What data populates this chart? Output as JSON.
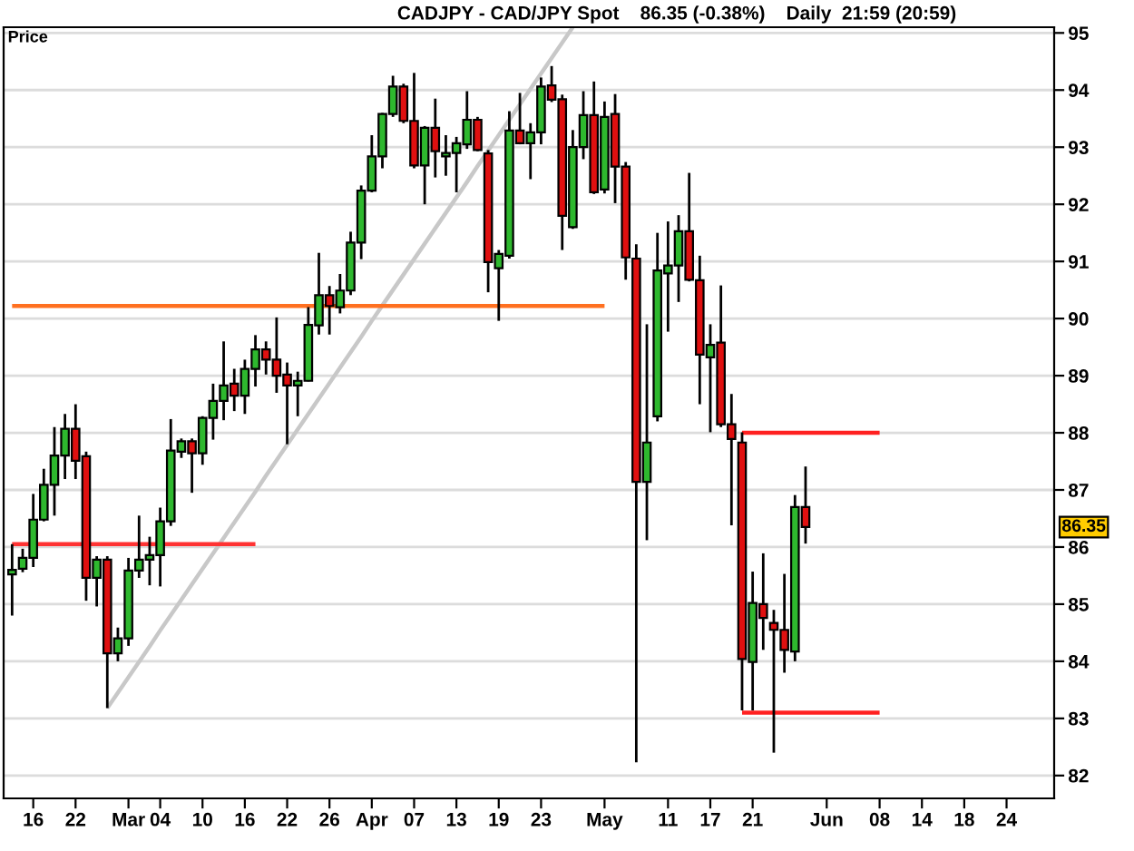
{
  "chart_data": {
    "type": "candlestick",
    "title": "CADJPY - CAD/JPY Spot    86.35 (-0.38%)    Daily  21:59 (20:59)",
    "ylabel": "Price",
    "categories": [
      null,
      null,
      "16",
      null,
      null,
      null,
      "22",
      null,
      null,
      null,
      null,
      "Mar",
      null,
      null,
      "04",
      null,
      null,
      null,
      "10",
      null,
      null,
      null,
      "16",
      null,
      null,
      null,
      "22",
      null,
      null,
      null,
      "26",
      null,
      null,
      null,
      "Apr",
      null,
      null,
      null,
      "07",
      null,
      null,
      null,
      "13",
      null,
      null,
      null,
      "19",
      null,
      null,
      null,
      "23",
      null,
      null,
      null,
      null,
      null,
      "May",
      null,
      null,
      null,
      null,
      null,
      "11",
      null,
      null,
      null,
      "17",
      null,
      null,
      null,
      "21",
      null,
      null,
      null,
      null,
      null,
      null,
      "Jun",
      null,
      null,
      null,
      null,
      "08",
      null,
      null,
      null,
      "14",
      null,
      null,
      null,
      "18",
      null,
      null,
      null,
      "24",
      null,
      null,
      null,
      null
    ],
    "ohlc": [
      [
        85.52,
        86.05,
        84.8,
        85.6
      ],
      [
        85.62,
        85.97,
        85.56,
        85.81
      ],
      [
        85.81,
        86.93,
        85.65,
        86.48
      ],
      [
        86.48,
        87.37,
        86.45,
        87.09
      ],
      [
        87.09,
        88.1,
        86.55,
        87.6
      ],
      [
        87.6,
        88.33,
        87.19,
        88.07
      ],
      [
        88.07,
        88.5,
        87.19,
        87.51
      ],
      [
        87.59,
        87.67,
        85.06,
        85.46
      ],
      [
        85.46,
        85.84,
        84.96,
        85.78
      ],
      [
        85.78,
        85.84,
        83.18,
        84.14
      ],
      [
        84.14,
        84.59,
        84.0,
        84.4
      ],
      [
        84.4,
        85.81,
        84.27,
        85.59
      ],
      [
        85.59,
        86.55,
        85.46,
        85.78
      ],
      [
        85.78,
        86.18,
        85.33,
        85.86
      ],
      [
        85.86,
        86.69,
        85.31,
        86.45
      ],
      [
        86.45,
        88.24,
        86.37,
        87.69
      ],
      [
        87.67,
        87.9,
        87.56,
        87.85
      ],
      [
        87.85,
        87.9,
        86.95,
        87.64
      ],
      [
        87.64,
        88.29,
        87.44,
        88.26
      ],
      [
        88.26,
        88.86,
        87.88,
        88.56
      ],
      [
        88.56,
        89.6,
        88.22,
        88.83
      ],
      [
        88.86,
        89.12,
        88.38,
        88.65
      ],
      [
        88.65,
        89.28,
        88.33,
        89.12
      ],
      [
        89.12,
        89.71,
        88.81,
        89.46
      ],
      [
        89.46,
        89.6,
        89.02,
        89.28
      ],
      [
        89.28,
        90.02,
        88.7,
        89.0
      ],
      [
        89.02,
        89.23,
        87.8,
        88.83
      ],
      [
        88.83,
        89.07,
        88.29,
        88.91
      ],
      [
        88.91,
        90.2,
        88.9,
        89.89
      ],
      [
        89.88,
        91.15,
        89.72,
        90.41
      ],
      [
        90.41,
        90.57,
        89.72,
        90.22
      ],
      [
        90.2,
        90.78,
        90.09,
        90.49
      ],
      [
        90.49,
        91.52,
        90.41,
        91.33
      ],
      [
        91.33,
        92.33,
        91.04,
        92.24
      ],
      [
        92.24,
        93.21,
        92.21,
        92.84
      ],
      [
        92.84,
        93.6,
        92.63,
        93.58
      ],
      [
        93.58,
        94.25,
        93.53,
        94.06
      ],
      [
        94.06,
        94.11,
        93.42,
        93.46
      ],
      [
        93.46,
        94.3,
        92.63,
        92.68
      ],
      [
        92.68,
        93.37,
        92.0,
        93.34
      ],
      [
        93.34,
        93.85,
        92.47,
        92.93
      ],
      [
        92.84,
        93.21,
        92.5,
        92.9
      ],
      [
        92.9,
        93.18,
        92.21,
        93.07
      ],
      [
        93.05,
        93.98,
        92.97,
        93.48
      ],
      [
        93.48,
        93.53,
        92.93,
        92.95
      ],
      [
        92.89,
        92.95,
        90.46,
        90.99
      ],
      [
        90.88,
        91.2,
        89.96,
        91.13
      ],
      [
        91.1,
        93.63,
        91.05,
        93.29
      ],
      [
        93.29,
        93.95,
        93.05,
        93.07
      ],
      [
        93.07,
        93.42,
        92.44,
        93.26
      ],
      [
        93.26,
        94.22,
        93.05,
        94.06
      ],
      [
        94.08,
        94.42,
        93.79,
        93.83
      ],
      [
        93.84,
        93.92,
        91.2,
        91.8
      ],
      [
        91.6,
        93.3,
        91.57,
        93.0
      ],
      [
        93.0,
        93.98,
        92.79,
        93.56
      ],
      [
        93.56,
        94.15,
        92.18,
        92.21
      ],
      [
        92.26,
        93.8,
        92.19,
        93.53
      ],
      [
        93.58,
        93.93,
        92.02,
        92.66
      ],
      [
        92.66,
        92.74,
        90.68,
        91.07
      ],
      [
        91.05,
        91.3,
        82.23,
        87.14
      ],
      [
        87.14,
        89.9,
        86.12,
        87.83
      ],
      [
        88.29,
        91.5,
        88.2,
        90.84
      ],
      [
        90.79,
        91.7,
        89.77,
        90.93
      ],
      [
        90.93,
        91.81,
        90.29,
        91.53
      ],
      [
        91.53,
        92.55,
        90.65,
        90.68
      ],
      [
        90.67,
        91.1,
        88.5,
        89.37
      ],
      [
        89.32,
        89.9,
        88.01,
        89.54
      ],
      [
        89.58,
        90.58,
        88.1,
        88.15
      ],
      [
        88.15,
        88.68,
        86.38,
        87.89
      ],
      [
        87.83,
        88.01,
        83.14,
        84.04
      ],
      [
        83.99,
        85.57,
        83.14,
        85.02
      ],
      [
        85.0,
        85.89,
        84.2,
        84.76
      ],
      [
        84.67,
        84.9,
        82.4,
        84.55
      ],
      [
        84.55,
        85.53,
        83.8,
        84.2
      ],
      [
        84.17,
        86.91,
        84.0,
        86.7
      ],
      [
        86.7,
        87.41,
        86.06,
        86.35
      ],
      null,
      null,
      null,
      null,
      null,
      null,
      null,
      null,
      null,
      null,
      null,
      null,
      null,
      null,
      null,
      null,
      null,
      null,
      null,
      null,
      null,
      null,
      null
    ],
    "colors": [
      "#2eb82e",
      "#2eb82e",
      "#2eb82e",
      "#2eb82e",
      "#2eb82e",
      "#2eb82e",
      "#e01010",
      "#e01010",
      "#2eb82e",
      "#e01010",
      "#2eb82e",
      "#2eb82e",
      "#2eb82e",
      "#2eb82e",
      "#2eb82e",
      "#2eb82e",
      "#2eb82e",
      "#e01010",
      "#2eb82e",
      "#2eb82e",
      "#2eb82e",
      "#e01010",
      "#2eb82e",
      "#2eb82e",
      "#e01010",
      "#e01010",
      "#e01010",
      "#2eb82e",
      "#2eb82e",
      "#2eb82e",
      "#e01010",
      "#2eb82e",
      "#2eb82e",
      "#2eb82e",
      "#2eb82e",
      "#2eb82e",
      "#2eb82e",
      "#e01010",
      "#e01010",
      "#2eb82e",
      "#e01010",
      "#2eb82e",
      "#2eb82e",
      "#2eb82e",
      "#e01010",
      "#e01010",
      "#2eb82e",
      "#2eb82e",
      "#e01010",
      "#2eb82e",
      "#2eb82e",
      "#e01010",
      "#e01010",
      "#2eb82e",
      "#2eb82e",
      "#e01010",
      "#2eb82e",
      "#e01010",
      "#e01010",
      "#e01010",
      "#2eb82e",
      "#2eb82e",
      "#2eb82e",
      "#2eb82e",
      "#e01010",
      "#e01010",
      "#2eb82e",
      "#e01010",
      "#e01010",
      "#e01010",
      "#2eb82e",
      "#e01010",
      "#e01010",
      "#e01010",
      "#2eb82e",
      "#e01010",
      null,
      null,
      null,
      null,
      null,
      null,
      null,
      null,
      null,
      null,
      null,
      null,
      null,
      null,
      null,
      null,
      null,
      null,
      null,
      null,
      null,
      null,
      null
    ],
    "series": [
      {
        "type": "line",
        "color": "#c8c8c8",
        "values": [
          null,
          null,
          null,
          null,
          null,
          null,
          null,
          null,
          null,
          83.18,
          83.45,
          83.72,
          83.99,
          84.26,
          84.54,
          84.81,
          85.08,
          85.35,
          85.62,
          85.89,
          86.16,
          86.43,
          86.7,
          86.97,
          87.25,
          87.52,
          87.79,
          88.06,
          88.33,
          88.6,
          88.87,
          89.14,
          89.41,
          89.68,
          89.96,
          90.23,
          90.5,
          90.77,
          91.04,
          91.31,
          91.58,
          91.85,
          92.12,
          92.39,
          92.67,
          92.94,
          93.21,
          93.48,
          93.75,
          94.02,
          94.29,
          94.56,
          94.83,
          95.1,
          null,
          null,
          null,
          null,
          null,
          null,
          null,
          null,
          null,
          null,
          null,
          null,
          null,
          null,
          null,
          null,
          null,
          null,
          null,
          null,
          null,
          null,
          null,
          null,
          null,
          null,
          null,
          null,
          null,
          null,
          null,
          null,
          null,
          null,
          null,
          null,
          null,
          null,
          null,
          null,
          null,
          null,
          null,
          null,
          null
        ]
      },
      {
        "type": "line",
        "color": "#ff3333",
        "values": [
          86.05,
          86.05,
          86.05,
          86.05,
          86.05,
          86.05,
          86.05,
          86.05,
          86.05,
          86.05,
          86.05,
          86.05,
          86.05,
          86.05,
          86.05,
          86.05,
          86.05,
          86.05,
          86.05,
          86.05,
          86.05,
          86.05,
          86.05,
          86.05,
          null,
          null,
          null,
          null,
          null,
          null,
          null,
          null,
          null,
          null,
          null,
          null,
          null,
          null,
          null,
          null,
          null,
          null,
          null,
          null,
          null,
          null,
          null,
          null,
          null,
          null,
          null,
          null,
          null,
          null,
          null,
          null,
          null,
          null,
          null,
          null,
          null,
          null,
          null,
          null,
          null,
          null,
          null,
          null,
          null,
          null,
          null,
          null,
          null,
          null,
          null,
          null,
          null,
          null,
          null,
          null,
          null,
          null,
          null,
          null,
          null,
          null,
          null,
          null,
          null,
          null,
          null,
          null,
          null,
          null,
          null,
          null,
          null,
          null,
          null
        ]
      },
      {
        "type": "line",
        "color": "#ff7020",
        "values": [
          90.22,
          90.22,
          90.22,
          90.22,
          90.22,
          90.22,
          90.22,
          90.22,
          90.22,
          90.22,
          90.22,
          90.22,
          90.22,
          90.22,
          90.22,
          90.22,
          90.22,
          90.22,
          90.22,
          90.22,
          90.22,
          90.22,
          90.22,
          90.22,
          90.22,
          90.22,
          90.22,
          90.22,
          90.22,
          90.22,
          90.22,
          90.22,
          90.22,
          90.22,
          90.22,
          90.22,
          90.22,
          90.22,
          90.22,
          90.22,
          90.22,
          90.22,
          90.22,
          90.22,
          90.22,
          90.22,
          90.22,
          90.22,
          90.22,
          90.22,
          90.22,
          90.22,
          90.22,
          90.22,
          90.22,
          90.22,
          90.22,
          null,
          null,
          null,
          null,
          null,
          null,
          null,
          null,
          null,
          null,
          null,
          null,
          null,
          null,
          null,
          null,
          null,
          null,
          null,
          null,
          null,
          null,
          null,
          null,
          null,
          null,
          null,
          null,
          null,
          null,
          null,
          null,
          null,
          null,
          null,
          null,
          null,
          null,
          null,
          null,
          null,
          null
        ]
      },
      {
        "type": "line",
        "color": "#ff2020",
        "values": [
          null,
          null,
          null,
          null,
          null,
          null,
          null,
          null,
          null,
          null,
          null,
          null,
          null,
          null,
          null,
          null,
          null,
          null,
          null,
          null,
          null,
          null,
          null,
          null,
          null,
          null,
          null,
          null,
          null,
          null,
          null,
          null,
          null,
          null,
          null,
          null,
          null,
          null,
          null,
          null,
          null,
          null,
          null,
          null,
          null,
          null,
          null,
          null,
          null,
          null,
          null,
          null,
          null,
          null,
          null,
          null,
          null,
          null,
          null,
          null,
          null,
          null,
          null,
          null,
          null,
          null,
          null,
          null,
          null,
          88.0,
          88.0,
          88.0,
          88.0,
          88.0,
          88.0,
          88.0,
          88.0,
          88.0,
          88.0,
          88.0,
          88.0,
          88.0,
          88.0,
          null,
          null,
          null,
          null,
          null,
          null,
          null,
          null,
          null,
          null,
          null,
          null,
          null,
          null,
          null,
          null
        ]
      },
      {
        "type": "line",
        "color": "#ff2020",
        "values": [
          null,
          null,
          null,
          null,
          null,
          null,
          null,
          null,
          null,
          null,
          null,
          null,
          null,
          null,
          null,
          null,
          null,
          null,
          null,
          null,
          null,
          null,
          null,
          null,
          null,
          null,
          null,
          null,
          null,
          null,
          null,
          null,
          null,
          null,
          null,
          null,
          null,
          null,
          null,
          null,
          null,
          null,
          null,
          null,
          null,
          null,
          null,
          null,
          null,
          null,
          null,
          null,
          null,
          null,
          null,
          null,
          null,
          null,
          null,
          null,
          null,
          null,
          null,
          null,
          null,
          null,
          null,
          null,
          null,
          83.1,
          83.1,
          83.1,
          83.1,
          83.1,
          83.1,
          83.1,
          83.1,
          83.1,
          83.1,
          83.1,
          83.1,
          83.1,
          83.1,
          null,
          null,
          null,
          null,
          null,
          null,
          null,
          null,
          null,
          null,
          null,
          null,
          null,
          null,
          null,
          null
        ]
      }
    ],
    "ylim": [
      81.6,
      95.1
    ],
    "yticks": [
      82,
      83,
      84,
      85,
      86,
      87,
      88,
      89,
      90,
      91,
      92,
      93,
      94,
      95
    ],
    "grid": "y",
    "annotations": [
      {
        "text": "86.35",
        "y": 86.35
      }
    ]
  }
}
